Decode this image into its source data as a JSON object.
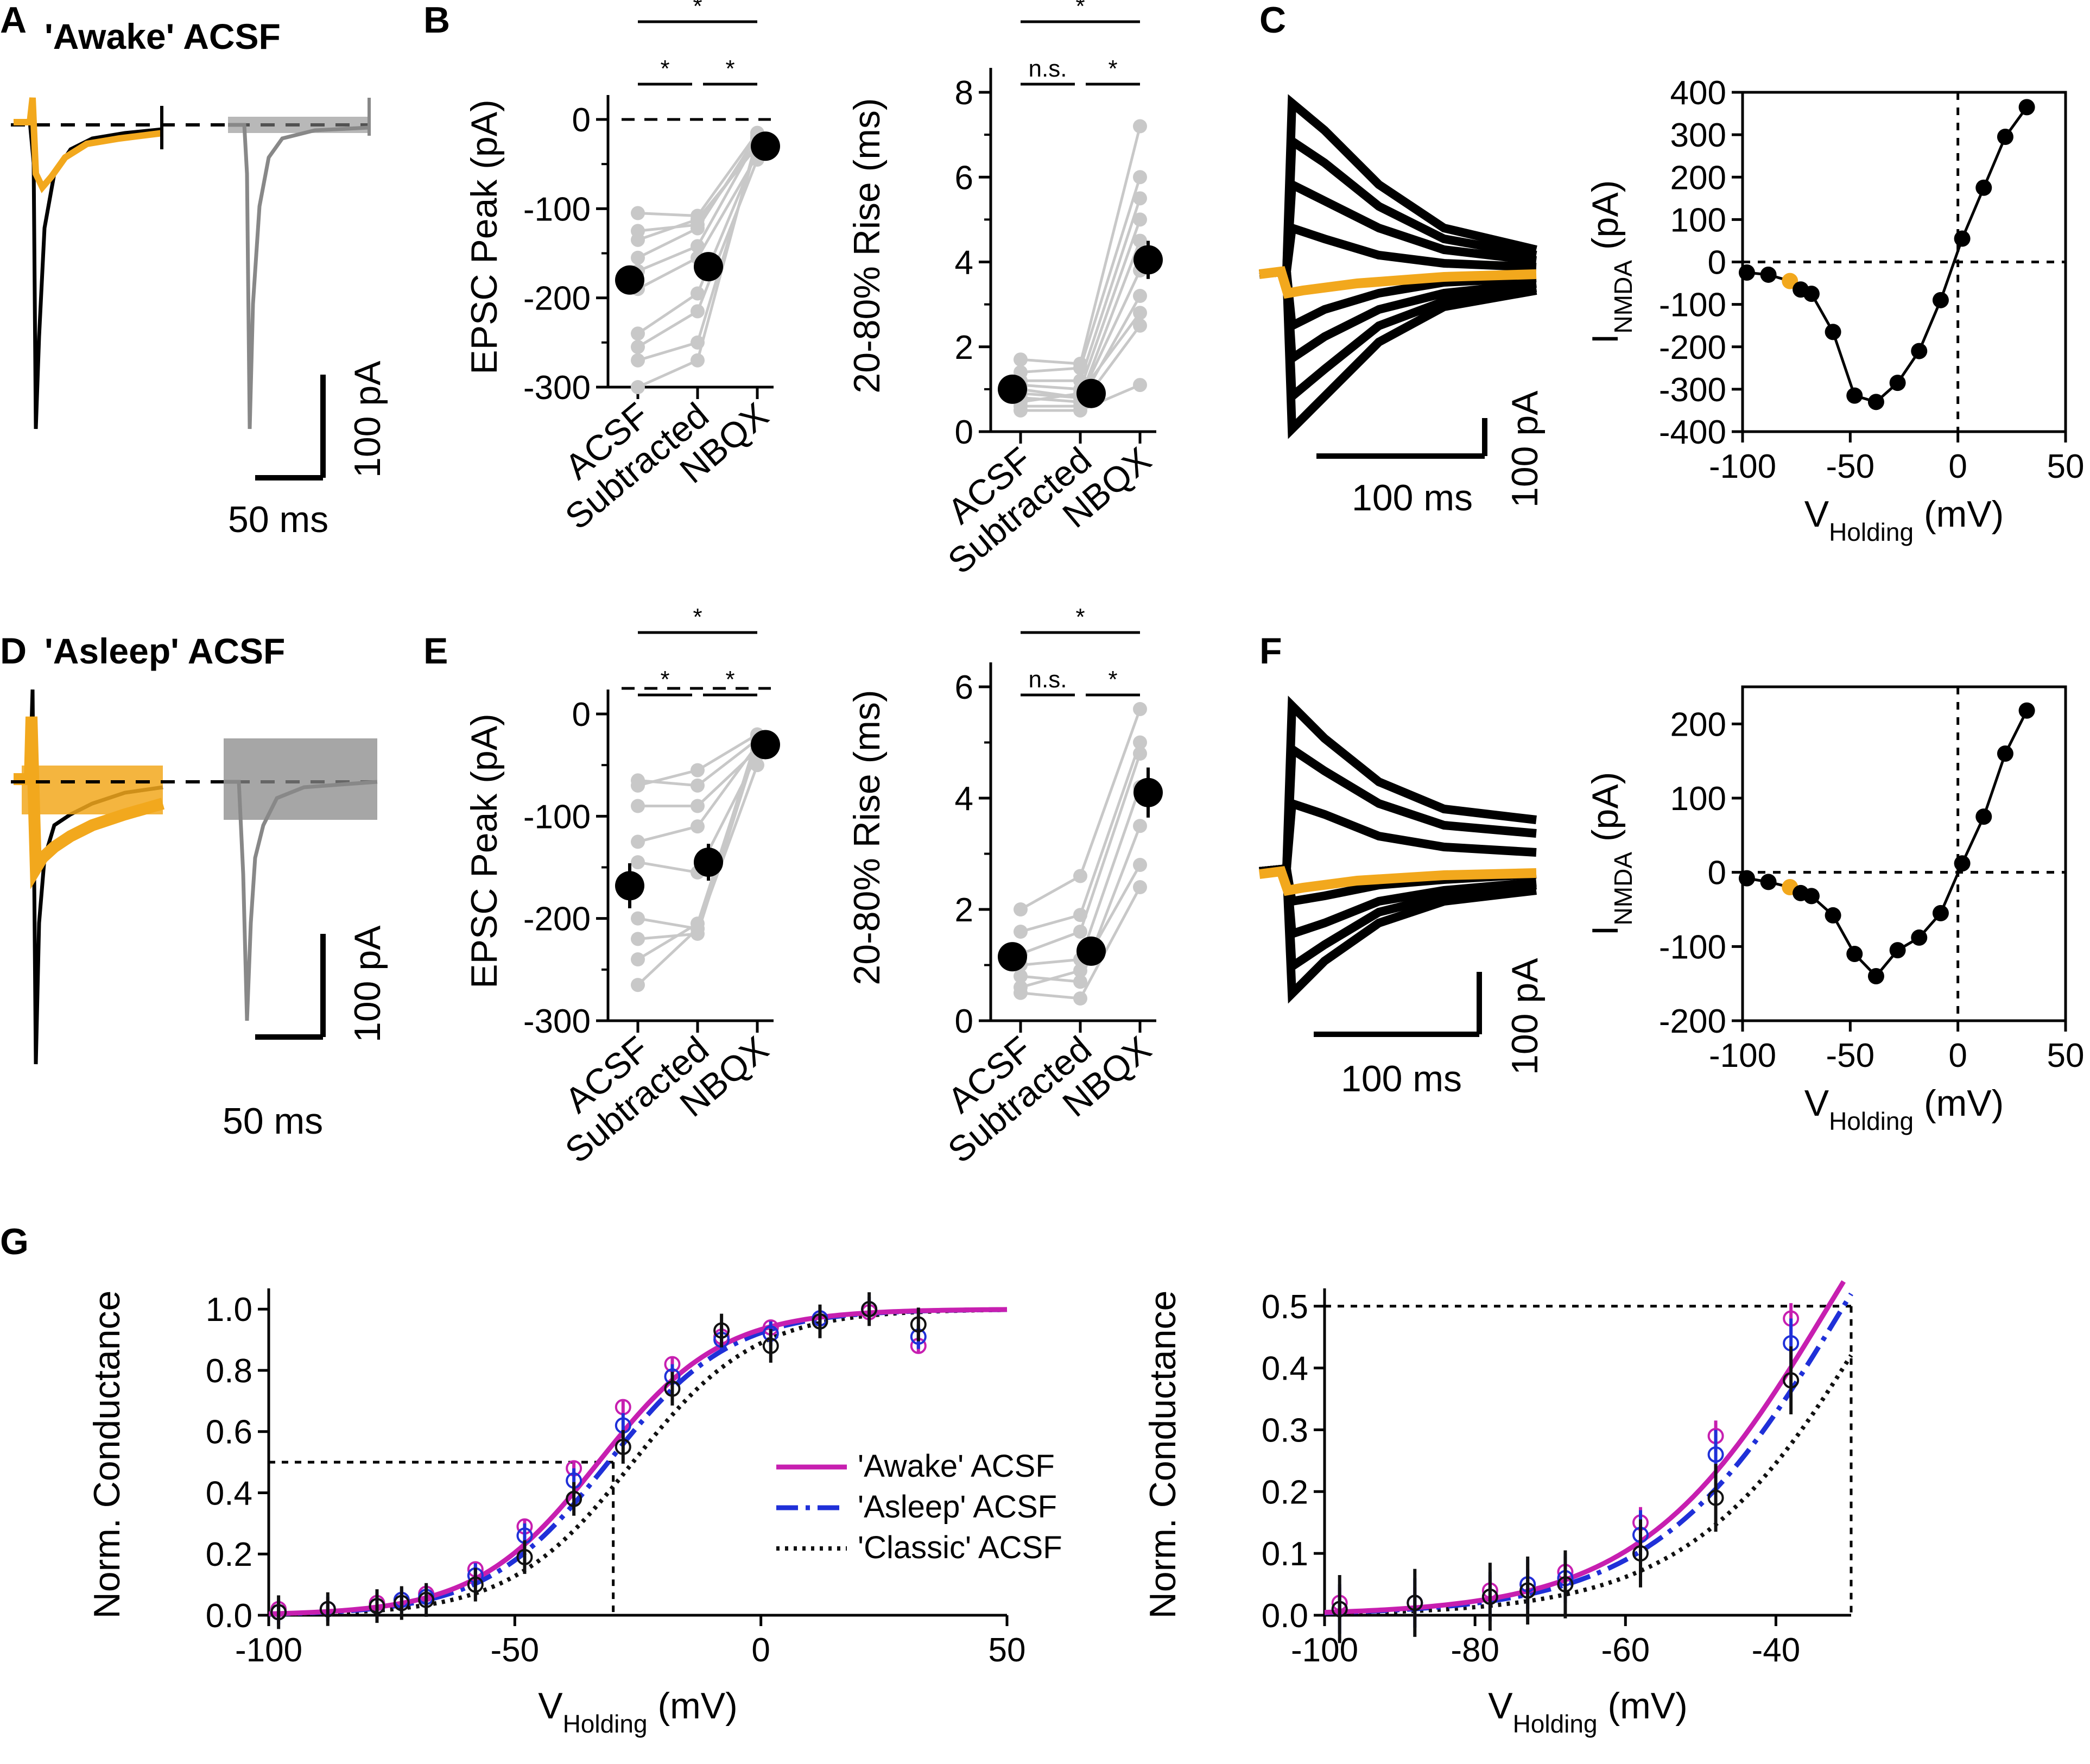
{
  "colors": {
    "awake": "#c71fb0",
    "asleep": "#1f30d8",
    "classic": "#111111",
    "highlight": "#f2a81d",
    "paired": "#c8c8c8",
    "mean": "#000000",
    "trace_nbqx": "#888888"
  },
  "panels": {
    "A": {
      "letter": "A",
      "title": "'Awake' ACSF",
      "scale_y": "100 pA",
      "scale_x": "50 ms"
    },
    "B": {
      "letter": "B"
    },
    "C": {
      "letter": "C",
      "scale_y": "100 pA",
      "scale_x": "100 ms"
    },
    "D": {
      "letter": "D",
      "title": "'Asleep' ACSF",
      "scale_y": "100 pA",
      "scale_x": "50 ms"
    },
    "E": {
      "letter": "E"
    },
    "F": {
      "letter": "F",
      "scale_y": "100 pA",
      "scale_x": "100 ms"
    },
    "G": {
      "letter": "G"
    }
  },
  "chart_data": [
    {
      "id": "B-peak",
      "type": "scatter",
      "ylabel": "EPSC Peak (pA)",
      "categories": [
        "ACSF",
        "Subtracted",
        "NBQX"
      ],
      "ylim": [
        -300,
        0
      ],
      "yticks": [
        0,
        -100,
        -200,
        -300
      ],
      "pairs": [
        [
          -105,
          -108,
          -15
        ],
        [
          -125,
          -118,
          -25
        ],
        [
          -135,
          -112,
          -30
        ],
        [
          -155,
          -122,
          -18
        ],
        [
          -170,
          -142,
          -22
        ],
        [
          -190,
          -155,
          -40
        ],
        [
          -240,
          -195,
          -35
        ],
        [
          -255,
          -215,
          -45
        ],
        [
          -270,
          -250,
          -28
        ],
        [
          -300,
          -270,
          -20
        ]
      ],
      "means": [
        -180,
        -165,
        -30
      ],
      "errors": [
        15,
        13,
        4
      ],
      "significance": [
        {
          "from": 0,
          "to": 2,
          "text": "*"
        },
        {
          "from": 0,
          "to": 1,
          "text": "*"
        },
        {
          "from": 1,
          "to": 2,
          "text": "*"
        }
      ]
    },
    {
      "id": "B-rise",
      "type": "scatter",
      "ylabel": "20-80% Rise (ms)",
      "categories": [
        "ACSF",
        "Subtracted",
        "NBQX"
      ],
      "ylim": [
        0,
        8
      ],
      "yticks": [
        0,
        2,
        4,
        6,
        8
      ],
      "pairs": [
        [
          1.7,
          1.6,
          7.2
        ],
        [
          1.4,
          1.5,
          6.0
        ],
        [
          1.2,
          1.2,
          5.5
        ],
        [
          1.1,
          1.0,
          5.0
        ],
        [
          1.0,
          0.8,
          4.5
        ],
        [
          0.9,
          0.8,
          3.8
        ],
        [
          0.8,
          0.7,
          3.2
        ],
        [
          0.7,
          0.9,
          2.8
        ],
        [
          0.6,
          0.6,
          2.5
        ],
        [
          0.5,
          0.5,
          1.1
        ]
      ],
      "means": [
        1.0,
        0.9,
        4.05
      ],
      "errors": [
        0.15,
        0.1,
        0.45
      ],
      "significance": [
        {
          "from": 0,
          "to": 2,
          "text": "*"
        },
        {
          "from": 0,
          "to": 1,
          "text": "n.s."
        },
        {
          "from": 1,
          "to": 2,
          "text": "*"
        }
      ]
    },
    {
      "id": "C-iv",
      "type": "line",
      "ylabel": "I_NMDA (pA)",
      "xlabel": "V_Holding (mV)",
      "xlim": [
        -100,
        50
      ],
      "ylim": [
        -400,
        400
      ],
      "xticks": [
        -100,
        -50,
        0,
        50
      ],
      "yticks": [
        400,
        300,
        200,
        100,
        0,
        -100,
        -200,
        -300,
        -400
      ],
      "x": [
        -98,
        -88,
        -78,
        -73,
        -68,
        -58,
        -48,
        -38,
        -28,
        -18,
        -8,
        2,
        12,
        22,
        32
      ],
      "y": [
        -25,
        -30,
        -45,
        -65,
        -75,
        -165,
        -315,
        -330,
        -285,
        -210,
        -90,
        55,
        175,
        295,
        365
      ],
      "highlight_index": 2
    },
    {
      "id": "E-peak",
      "type": "scatter",
      "ylabel": "EPSC Peak (pA)",
      "categories": [
        "ACSF",
        "Subtracted",
        "NBQX"
      ],
      "ylim": [
        -300,
        0
      ],
      "yticks": [
        0,
        -100,
        -200,
        -300
      ],
      "pairs": [
        [
          -70,
          -55,
          -20
        ],
        [
          -65,
          -70,
          -25
        ],
        [
          -90,
          -90,
          -35
        ],
        [
          -125,
          -110,
          -30
        ],
        [
          -145,
          -155,
          -40
        ],
        [
          -200,
          -210,
          -50
        ],
        [
          -220,
          -215,
          -30
        ],
        [
          -240,
          -205,
          -25
        ],
        [
          -265,
          -210,
          -22
        ]
      ],
      "means": [
        -168,
        -145,
        -30
      ],
      "errors": [
        22,
        18,
        4
      ],
      "significance": [
        {
          "from": 0,
          "to": 2,
          "text": "*"
        },
        {
          "from": 0,
          "to": 1,
          "text": "*"
        },
        {
          "from": 1,
          "to": 2,
          "text": "*"
        }
      ]
    },
    {
      "id": "E-rise",
      "type": "scatter",
      "ylabel": "20-80% Rise (ms)",
      "categories": [
        "ACSF",
        "Subtracted",
        "NBQX"
      ],
      "ylim": [
        0,
        6
      ],
      "yticks": [
        0,
        2,
        4,
        6
      ],
      "pairs": [
        [
          2.0,
          2.6,
          5.6
        ],
        [
          1.6,
          1.9,
          5.0
        ],
        [
          1.2,
          1.6,
          4.8
        ],
        [
          1.0,
          1.1,
          4.2
        ],
        [
          0.8,
          0.7,
          3.5
        ],
        [
          0.6,
          0.9,
          2.8
        ],
        [
          0.5,
          0.4,
          2.4
        ]
      ],
      "means": [
        1.15,
        1.25,
        4.1
      ],
      "errors": [
        0.2,
        0.25,
        0.45
      ],
      "significance": [
        {
          "from": 0,
          "to": 2,
          "text": "*"
        },
        {
          "from": 0,
          "to": 1,
          "text": "n.s."
        },
        {
          "from": 1,
          "to": 2,
          "text": "*"
        }
      ]
    },
    {
      "id": "F-iv",
      "type": "line",
      "ylabel": "I_NMDA (pA)",
      "xlabel": "V_Holding (mV)",
      "xlim": [
        -100,
        50
      ],
      "ylim": [
        -200,
        250
      ],
      "xticks": [
        -100,
        -50,
        0,
        50
      ],
      "yticks": [
        200,
        100,
        0,
        -100,
        -200
      ],
      "x": [
        -98,
        -88,
        -78,
        -73,
        -68,
        -58,
        -48,
        -38,
        -28,
        -18,
        -8,
        2,
        12,
        22,
        32
      ],
      "y": [
        -8,
        -13,
        -20,
        -28,
        -32,
        -58,
        -110,
        -140,
        -105,
        -88,
        -55,
        12,
        75,
        160,
        218
      ],
      "highlight_index": 2
    },
    {
      "id": "G-full",
      "type": "line",
      "ylabel": "Norm. Conductance",
      "xlabel": "V_Holding (mV)",
      "xlim": [
        -100,
        50
      ],
      "ylim": [
        0,
        1.05
      ],
      "xticks": [
        -100,
        -50,
        0,
        50
      ],
      "yticks": [
        0.0,
        0.2,
        0.4,
        0.6,
        0.8,
        1.0
      ],
      "legend": [
        "'Awake' ACSF",
        "'Asleep' ACSF",
        "'Classic' ACSF"
      ],
      "x": [
        -98,
        -88,
        -78,
        -73,
        -68,
        -58,
        -48,
        -38,
        -28,
        -18,
        -8,
        2,
        12,
        22,
        32
      ],
      "series": [
        {
          "name": "'Awake' ACSF",
          "values": [
            0.02,
            0.02,
            0.04,
            0.05,
            0.07,
            0.15,
            0.29,
            0.48,
            0.68,
            0.82,
            0.91,
            0.94,
            0.97,
            0.99,
            0.88
          ]
        },
        {
          "name": "'Asleep' ACSF",
          "values": [
            0.01,
            0.02,
            0.03,
            0.05,
            0.06,
            0.13,
            0.26,
            0.44,
            0.62,
            0.78,
            0.9,
            0.92,
            0.97,
            1.0,
            0.91
          ]
        },
        {
          "name": "'Classic' ACSF",
          "values": [
            0.01,
            0.02,
            0.03,
            0.04,
            0.05,
            0.1,
            0.19,
            0.38,
            0.55,
            0.74,
            0.93,
            0.88,
            0.96,
            1.0,
            0.95
          ]
        }
      ],
      "fit_v50": [
        -33,
        -31,
        -26
      ],
      "fit_slope": [
        12.5,
        12.5,
        12.5
      ],
      "ref_v": -30,
      "ref_g": 0.5
    },
    {
      "id": "G-zoom",
      "type": "line",
      "ylabel": "Norm. Conductance",
      "xlabel": "V_Holding (mV)",
      "xlim": [
        -100,
        -30
      ],
      "ylim": [
        0,
        0.52
      ],
      "xticks": [
        -100,
        -80,
        -60,
        -40
      ],
      "yticks": [
        0.0,
        0.1,
        0.2,
        0.3,
        0.4,
        0.5
      ],
      "x": [
        -98,
        -88,
        -78,
        -73,
        -68,
        -58,
        -48,
        -38
      ],
      "series": [
        {
          "name": "'Awake' ACSF",
          "values": [
            0.02,
            0.02,
            0.04,
            0.05,
            0.07,
            0.15,
            0.29,
            0.48
          ]
        },
        {
          "name": "'Asleep' ACSF",
          "values": [
            0.01,
            0.02,
            0.03,
            0.05,
            0.06,
            0.13,
            0.26,
            0.44
          ]
        },
        {
          "name": "'Classic' ACSF",
          "values": [
            0.01,
            0.02,
            0.03,
            0.04,
            0.05,
            0.1,
            0.19,
            0.38
          ]
        }
      ],
      "fit_v50": [
        -33,
        -31,
        -26
      ],
      "fit_slope": [
        12.5,
        12.5,
        12.5
      ],
      "ref_v": -30,
      "ref_g": 0.5
    }
  ]
}
